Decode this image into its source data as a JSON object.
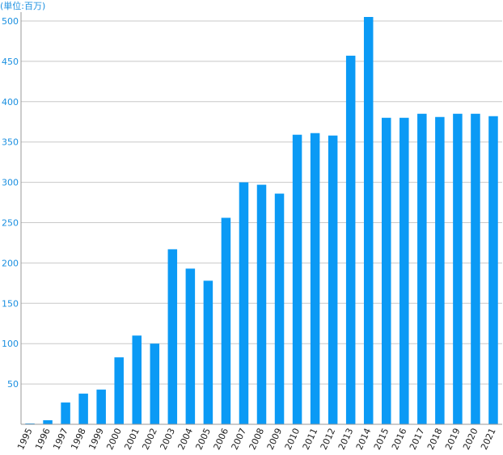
{
  "chart_data": {
    "type": "bar",
    "unit_label": "(単位:百万)",
    "categories": [
      "1995",
      "1996",
      "1997",
      "1998",
      "1999",
      "2000",
      "2001",
      "2002",
      "2003",
      "2004",
      "2005",
      "2006",
      "2007",
      "2008",
      "2009",
      "2010",
      "2011",
      "2012",
      "2013",
      "2014",
      "2015",
      "2016",
      "2017",
      "2018",
      "2019",
      "2020",
      "2021"
    ],
    "values": [
      1,
      5,
      27,
      38,
      43,
      83,
      110,
      100,
      217,
      193,
      178,
      256,
      300,
      297,
      286,
      359,
      361,
      358,
      457,
      505,
      380,
      380,
      385,
      381,
      385,
      385,
      382
    ],
    "ylim": [
      0,
      505
    ],
    "yticks": [
      50,
      100,
      150,
      200,
      250,
      300,
      350,
      400,
      450,
      500
    ],
    "grid": true,
    "legend": "none",
    "colors": {
      "bar": "#0b9af5",
      "y_tick_text": "#1a8fe0",
      "x_tick_text": "#222222",
      "grid": "#c8c8c8",
      "axis": "#999999",
      "unit_text": "#1a8fe0"
    }
  }
}
